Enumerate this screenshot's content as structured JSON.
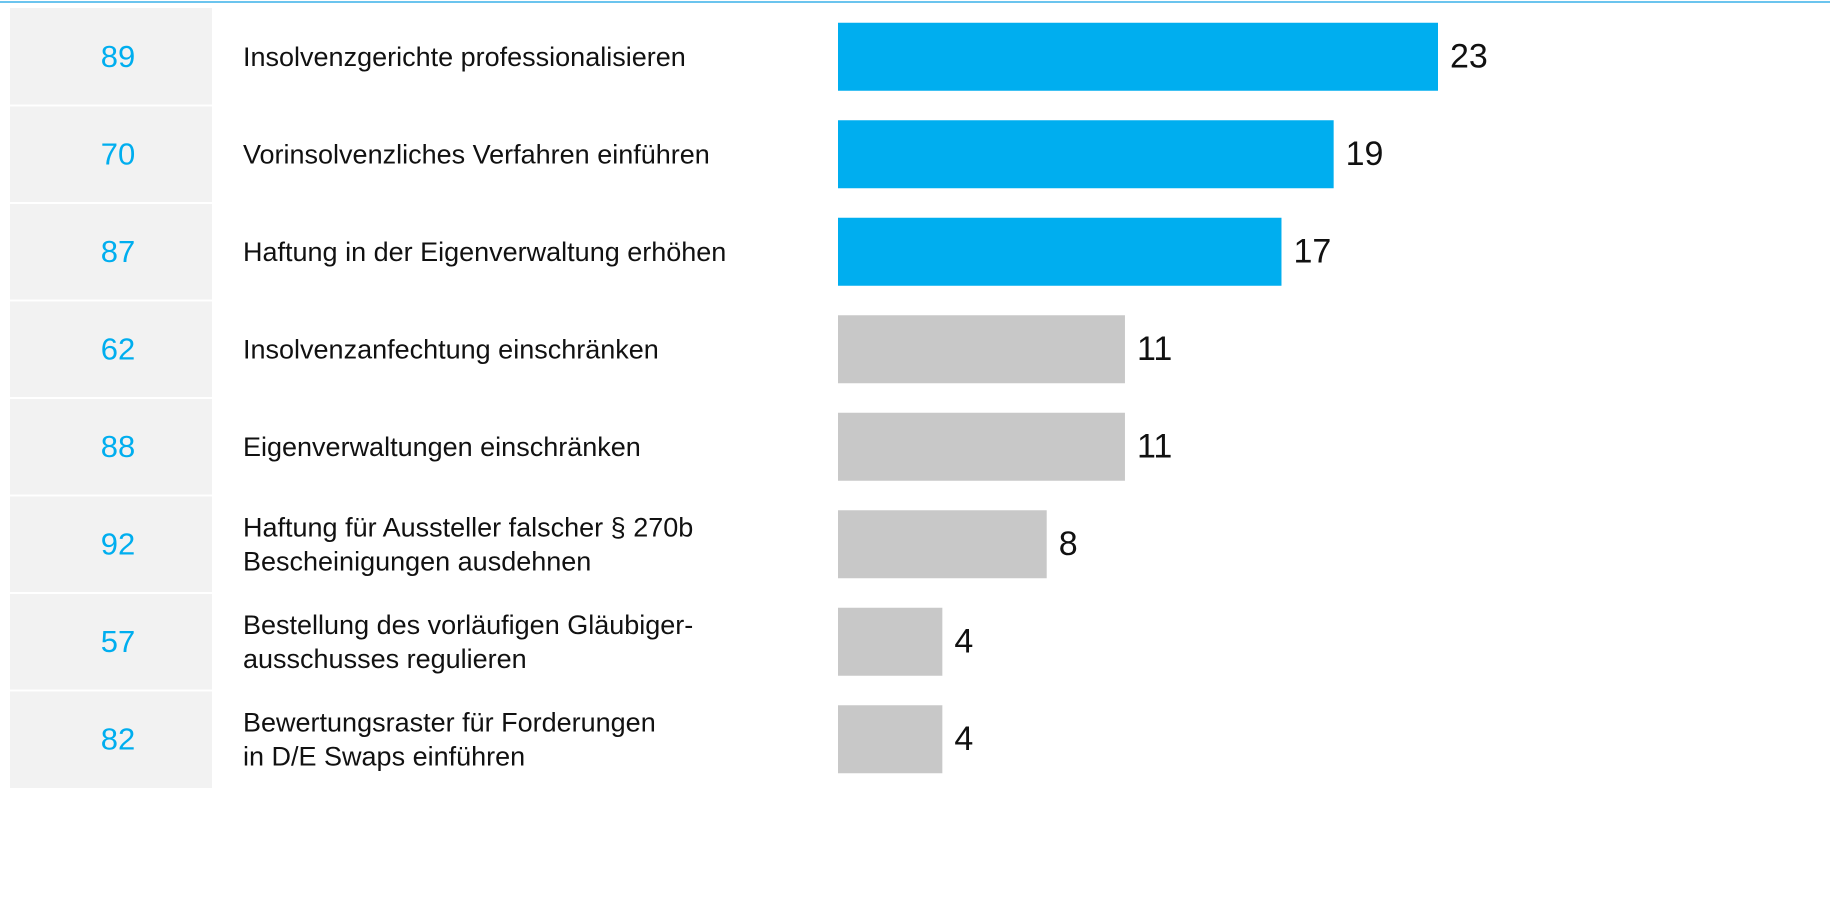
{
  "chart_data": {
    "type": "bar",
    "ids": [
      89,
      70,
      87,
      62,
      88,
      92,
      57,
      82
    ],
    "categories": [
      [
        "Insolvenzgerichte professionalisieren"
      ],
      [
        "Vorinsolvenzliches Verfahren einführen"
      ],
      [
        "Haftung in der Eigenverwaltung erhöhen"
      ],
      [
        "Insolvenzanfechtung einschränken"
      ],
      [
        "Eigenverwaltungen einschränken"
      ],
      [
        "Haftung für Aussteller falscher § 270b",
        "Bescheinigungen ausdehnen"
      ],
      [
        "Bestellung des vorläufigen Gläubiger-",
        "ausschusses regulieren"
      ],
      [
        "Bewertungsraster für Forderungen",
        "in D/E Swaps einführen"
      ]
    ],
    "values": [
      23,
      19,
      17,
      11,
      11,
      8,
      4,
      4
    ],
    "colors": [
      "#00aeef",
      "#00aeef",
      "#00aeef",
      "#c8c8c8",
      "#c8c8c8",
      "#c8c8c8",
      "#c8c8c8",
      "#c8c8c8"
    ],
    "id_color": "#00aeef"
  }
}
